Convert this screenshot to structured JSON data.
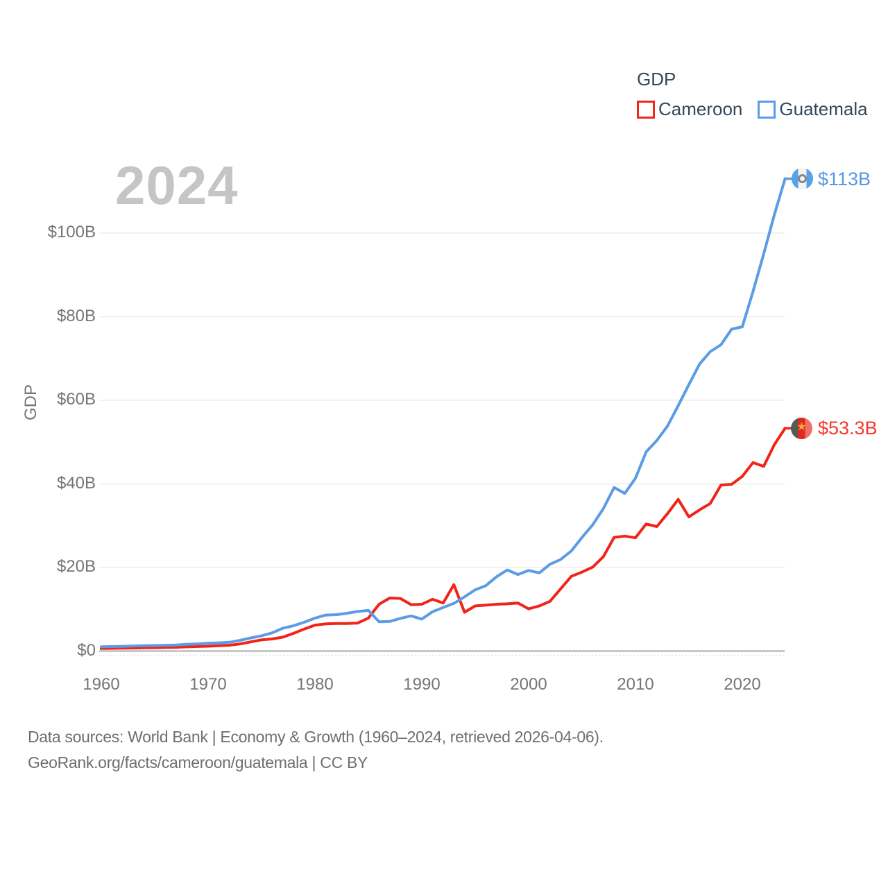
{
  "watermark_year": "2024",
  "legend": {
    "title": "GDP",
    "items": [
      {
        "label": "Cameroon"
      },
      {
        "label": "Guatemala"
      }
    ]
  },
  "colors": {
    "cameroon": "#f02419",
    "guatemala": "#5b9ce5",
    "cameroon_label": "#f5362b",
    "guatemala_label": "#5599e2"
  },
  "icons": {
    "star": "★",
    "cameroon_flag": "cameroon-flag-icon",
    "guatemala_flag": "guatemala-flag-icon"
  },
  "footer": {
    "line1": "Data sources: World Bank | Economy & Growth (1960–2024, retrieved 2026-04-06).",
    "line2": "GeoRank.org/facts/cameroon/guatemala | CC BY"
  },
  "chart_data": {
    "type": "line",
    "title": "GDP",
    "watermark": "2024",
    "ylabel": "GDP",
    "xlabel": "",
    "grid": true,
    "legend_position": "top-right",
    "x_range": [
      1960,
      2024
    ],
    "y_range_labeled": [
      0,
      100
    ],
    "y_ticks": [
      {
        "label": "$0",
        "value": 0
      },
      {
        "label": "$20B",
        "value": 20
      },
      {
        "label": "$40B",
        "value": 40
      },
      {
        "label": "$60B",
        "value": 60
      },
      {
        "label": "$80B",
        "value": 80
      },
      {
        "label": "$100B",
        "value": 100
      }
    ],
    "x_ticks": [
      {
        "label": "1960",
        "value": 1960
      },
      {
        "label": "1970",
        "value": 1970
      },
      {
        "label": "1980",
        "value": 1980
      },
      {
        "label": "1990",
        "value": 1990
      },
      {
        "label": "2000",
        "value": 2000
      },
      {
        "label": "2010",
        "value": 2010
      },
      {
        "label": "2020",
        "value": 2020
      }
    ],
    "x": [
      1960,
      1961,
      1962,
      1963,
      1964,
      1965,
      1966,
      1967,
      1968,
      1969,
      1970,
      1971,
      1972,
      1973,
      1974,
      1975,
      1976,
      1977,
      1978,
      1979,
      1980,
      1981,
      1982,
      1983,
      1984,
      1985,
      1986,
      1987,
      1988,
      1989,
      1990,
      1991,
      1992,
      1993,
      1994,
      1995,
      1996,
      1997,
      1998,
      1999,
      2000,
      2001,
      2002,
      2003,
      2004,
      2005,
      2006,
      2007,
      2008,
      2009,
      2010,
      2011,
      2012,
      2013,
      2014,
      2015,
      2016,
      2017,
      2018,
      2019,
      2020,
      2021,
      2022,
      2023,
      2024
    ],
    "series": [
      {
        "name": "Cameroon",
        "unit": "billion USD",
        "end_label": "$53.3B",
        "end_value": 53.3,
        "values": [
          0.62,
          0.66,
          0.69,
          0.73,
          0.79,
          0.81,
          0.87,
          0.92,
          1.01,
          1.09,
          1.16,
          1.29,
          1.41,
          1.71,
          2.2,
          2.69,
          2.9,
          3.34,
          4.25,
          5.27,
          6.2,
          6.5,
          6.6,
          6.6,
          6.7,
          7.9,
          11.2,
          12.7,
          12.6,
          11.1,
          11.2,
          12.4,
          11.5,
          15.9,
          9.3,
          10.8,
          11.0,
          11.2,
          11.3,
          11.5,
          10.1,
          10.8,
          11.9,
          14.9,
          17.9,
          18.9,
          20.1,
          22.6,
          27.2,
          27.5,
          27.1,
          30.4,
          29.8,
          32.9,
          36.3,
          32.1,
          33.8,
          35.3,
          39.7,
          39.9,
          41.8,
          45.1,
          44.2,
          49.4,
          53.3
        ]
      },
      {
        "name": "Guatemala",
        "unit": "billion USD",
        "end_label": "$113B",
        "end_value": 113,
        "values": [
          1.04,
          1.08,
          1.14,
          1.23,
          1.3,
          1.33,
          1.39,
          1.45,
          1.61,
          1.72,
          1.9,
          1.98,
          2.1,
          2.57,
          3.16,
          3.65,
          4.37,
          5.48,
          6.07,
          6.9,
          7.88,
          8.61,
          8.72,
          9.05,
          9.47,
          9.72,
          7.0,
          7.08,
          7.84,
          8.41,
          7.65,
          9.41,
          10.44,
          11.4,
          12.98,
          14.66,
          15.67,
          17.79,
          19.4,
          18.32,
          19.29,
          18.7,
          20.78,
          21.92,
          23.97,
          27.21,
          30.23,
          34.11,
          39.14,
          37.73,
          41.34,
          47.65,
          50.39,
          53.85,
          58.72,
          63.77,
          68.66,
          71.65,
          73.28,
          77.02,
          77.6,
          86.01,
          95.0,
          104.4,
          113.0
        ]
      }
    ]
  }
}
